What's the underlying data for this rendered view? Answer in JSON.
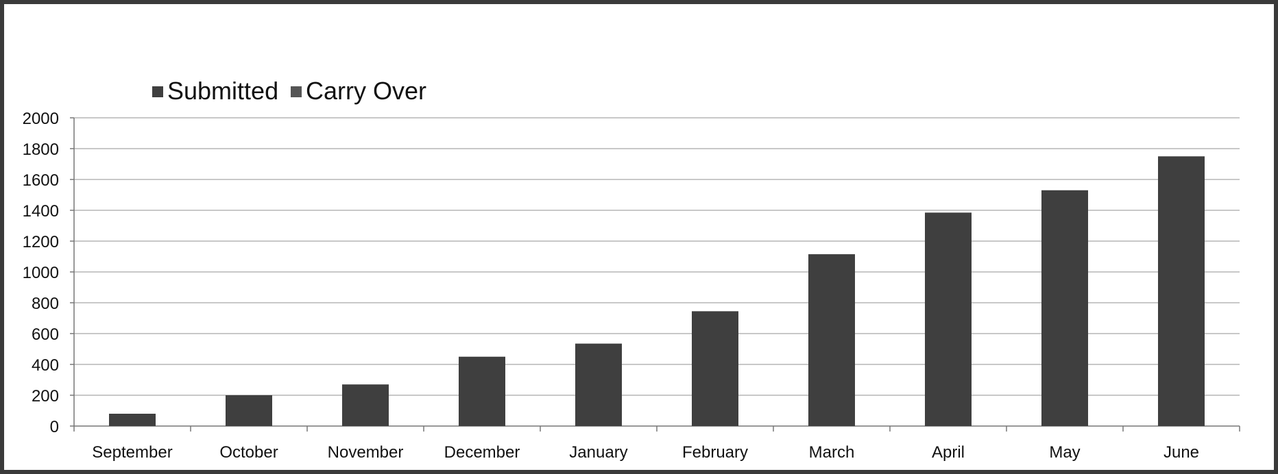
{
  "chart_data": {
    "type": "bar",
    "stacked": true,
    "categories": [
      "September",
      "October",
      "November",
      "December",
      "January",
      "February",
      "March",
      "April",
      "May",
      "June"
    ],
    "series": [
      {
        "name": "Submitted",
        "values": [
          80,
          200,
          270,
          450,
          535,
          745,
          1115,
          1385,
          1530,
          1750
        ],
        "color": "#3f3f3f"
      },
      {
        "name": "Carry Over",
        "values": [
          0,
          0,
          0,
          0,
          0,
          0,
          0,
          0,
          0,
          0
        ],
        "color": "#555555"
      }
    ],
    "title": "",
    "xlabel": "",
    "ylabel": "",
    "ylim": [
      0,
      2000
    ],
    "yticks": [
      0,
      200,
      400,
      600,
      800,
      1000,
      1200,
      1400,
      1600,
      1800,
      2000
    ],
    "grid": true,
    "legend_position": "top-left"
  }
}
